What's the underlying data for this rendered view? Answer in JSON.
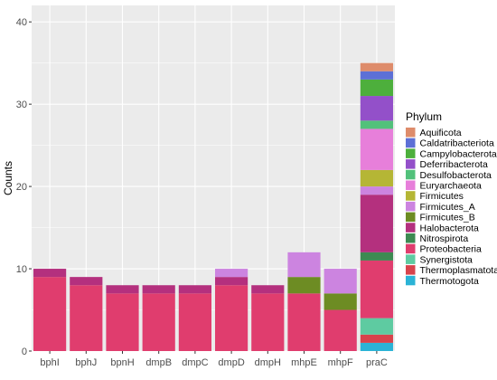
{
  "chart_data": {
    "type": "bar",
    "stacked": true,
    "title": "",
    "xlabel": "",
    "ylabel": "Counts",
    "ylim": [
      0,
      42
    ],
    "yticks": [
      0,
      10,
      20,
      30,
      40
    ],
    "categories": [
      "bphI",
      "bphJ",
      "bpnH",
      "dmpB",
      "dmpC",
      "dmpD",
      "dmpH",
      "mhpE",
      "mhpF",
      "praC"
    ],
    "legend": {
      "title": "Phylum",
      "position": "right"
    },
    "background": "#EBEBEB",
    "grid": true,
    "series": [
      {
        "name": "Thermotogota",
        "color": "#2BB3D6",
        "values": [
          0,
          0,
          0,
          0,
          0,
          0,
          0,
          0,
          0,
          1
        ]
      },
      {
        "name": "Thermoplasmatota",
        "color": "#D8434C",
        "values": [
          0,
          0,
          0,
          0,
          0,
          0,
          0,
          0,
          0,
          1
        ]
      },
      {
        "name": "Synergistota",
        "color": "#5ECBA1",
        "values": [
          0,
          0,
          0,
          0,
          0,
          0,
          0,
          0,
          0,
          2
        ]
      },
      {
        "name": "Proteobacteria",
        "color": "#E03D6E",
        "values": [
          9,
          8,
          7,
          7,
          7,
          8,
          7,
          7,
          5,
          7
        ]
      },
      {
        "name": "Nitrospirota",
        "color": "#3D8A52",
        "values": [
          0,
          0,
          0,
          0,
          0,
          0,
          0,
          0,
          0,
          1
        ]
      },
      {
        "name": "Halobacterota",
        "color": "#B4307E",
        "values": [
          1,
          1,
          1,
          1,
          1,
          1,
          1,
          0,
          0,
          7
        ]
      },
      {
        "name": "Firmicutes_B",
        "color": "#6D8C23",
        "values": [
          0,
          0,
          0,
          0,
          0,
          0,
          0,
          2,
          2,
          0
        ]
      },
      {
        "name": "Firmicutes_A",
        "color": "#CC84E0",
        "values": [
          0,
          0,
          0,
          0,
          0,
          1,
          0,
          3,
          3,
          1
        ]
      },
      {
        "name": "Firmicutes",
        "color": "#B5B635",
        "values": [
          0,
          0,
          0,
          0,
          0,
          0,
          0,
          0,
          0,
          2
        ]
      },
      {
        "name": "Euryarchaeota",
        "color": "#E77FDA",
        "values": [
          0,
          0,
          0,
          0,
          0,
          0,
          0,
          0,
          0,
          5
        ]
      },
      {
        "name": "Desulfobacterota",
        "color": "#52C17B",
        "values": [
          0,
          0,
          0,
          0,
          0,
          0,
          0,
          0,
          0,
          1
        ]
      },
      {
        "name": "Deferribacterota",
        "color": "#9350C9",
        "values": [
          0,
          0,
          0,
          0,
          0,
          0,
          0,
          0,
          0,
          3
        ]
      },
      {
        "name": "Campylobacterota",
        "color": "#4DAF3C",
        "values": [
          0,
          0,
          0,
          0,
          0,
          0,
          0,
          0,
          0,
          2
        ]
      },
      {
        "name": "Caldatribacteriota",
        "color": "#5D70D6",
        "values": [
          0,
          0,
          0,
          0,
          0,
          0,
          0,
          0,
          0,
          1
        ]
      },
      {
        "name": "Aquificota",
        "color": "#DE8C6B",
        "values": [
          0,
          0,
          0,
          0,
          0,
          0,
          0,
          0,
          0,
          1
        ]
      }
    ],
    "legend_order": [
      "Aquificota",
      "Caldatribacteriota",
      "Campylobacterota",
      "Deferribacterota",
      "Desulfobacterota",
      "Euryarchaeota",
      "Firmicutes",
      "Firmicutes_A",
      "Firmicutes_B",
      "Halobacterota",
      "Nitrospirota",
      "Proteobacteria",
      "Synergistota",
      "Thermoplasmatota",
      "Thermotogota"
    ]
  }
}
